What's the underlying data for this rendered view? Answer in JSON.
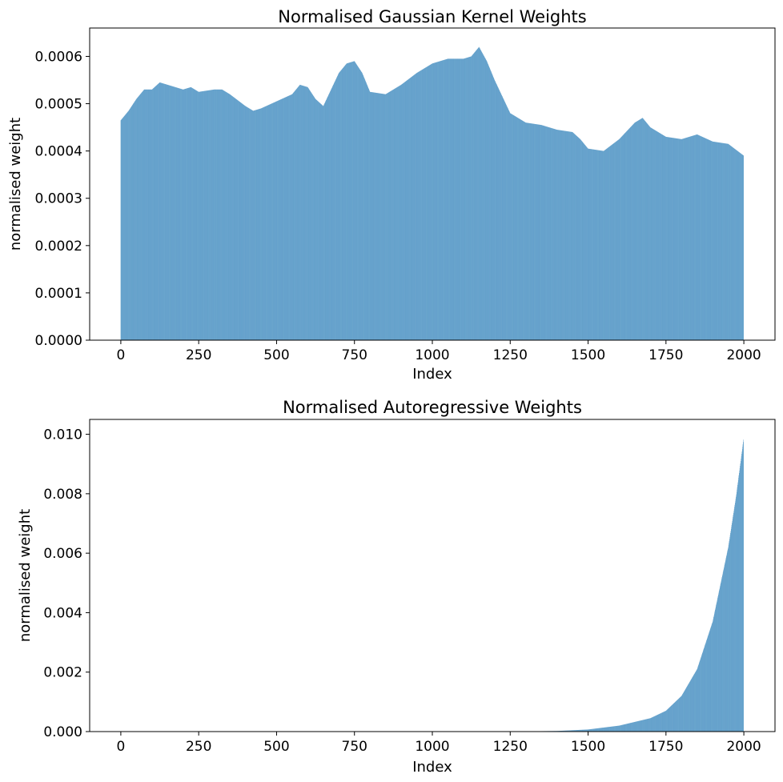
{
  "chart_data": [
    {
      "type": "bar",
      "title": "Normalised Gaussian Kernel Weights",
      "xlabel": "Index",
      "ylabel": "normalised weight",
      "xlim": [
        -100,
        2100
      ],
      "ylim": [
        0,
        0.00066
      ],
      "xticks": [
        0,
        250,
        500,
        750,
        1000,
        1250,
        1500,
        1750,
        2000
      ],
      "xtick_labels": [
        "0",
        "250",
        "500",
        "750",
        "1000",
        "1250",
        "1500",
        "1750",
        "2000"
      ],
      "yticks": [
        0,
        0.0001,
        0.0002,
        0.0003,
        0.0004,
        0.0005,
        0.0006
      ],
      "ytick_labels": [
        "0.0000",
        "0.0001",
        "0.0002",
        "0.0003",
        "0.0004",
        "0.0005",
        "0.0006"
      ],
      "color": "#1f77b4",
      "bar_count": 2000,
      "x_first": 0,
      "x_step": 1,
      "profile": {
        "x": [
          0,
          25,
          50,
          75,
          100,
          125,
          150,
          200,
          225,
          250,
          300,
          325,
          350,
          400,
          425,
          450,
          500,
          550,
          575,
          600,
          625,
          650,
          700,
          725,
          750,
          775,
          800,
          850,
          900,
          950,
          1000,
          1050,
          1100,
          1125,
          1150,
          1175,
          1200,
          1225,
          1250,
          1300,
          1350,
          1400,
          1450,
          1475,
          1500,
          1550,
          1600,
          1650,
          1675,
          1700,
          1750,
          1800,
          1850,
          1900,
          1950,
          2000
        ],
        "values": [
          0.000465,
          0.000485,
          0.00051,
          0.00053,
          0.00053,
          0.000545,
          0.00054,
          0.00053,
          0.000535,
          0.000525,
          0.00053,
          0.00053,
          0.00052,
          0.000495,
          0.000485,
          0.00049,
          0.000505,
          0.00052,
          0.00054,
          0.000535,
          0.00051,
          0.000495,
          0.000565,
          0.000585,
          0.00059,
          0.000565,
          0.000525,
          0.00052,
          0.00054,
          0.000565,
          0.000585,
          0.000595,
          0.000595,
          0.0006,
          0.00062,
          0.00059,
          0.00055,
          0.000515,
          0.00048,
          0.00046,
          0.000455,
          0.000445,
          0.00044,
          0.000425,
          0.000405,
          0.0004,
          0.000425,
          0.00046,
          0.00047,
          0.00045,
          0.00043,
          0.000425,
          0.000435,
          0.00042,
          0.000415,
          0.00039
        ]
      }
    },
    {
      "type": "bar",
      "title": "Normalised Autoregressive Weights",
      "xlabel": "Index",
      "ylabel": "normalised weight",
      "xlim": [
        -100,
        2100
      ],
      "ylim": [
        0,
        0.0105
      ],
      "xticks": [
        0,
        250,
        500,
        750,
        1000,
        1250,
        1500,
        1750,
        2000
      ],
      "xtick_labels": [
        "0",
        "250",
        "500",
        "750",
        "1000",
        "1250",
        "1500",
        "1750",
        "2000"
      ],
      "yticks": [
        0,
        0.002,
        0.004,
        0.006,
        0.008,
        0.01
      ],
      "ytick_labels": [
        "0.000",
        "0.002",
        "0.004",
        "0.006",
        "0.008",
        "0.010"
      ],
      "color": "#1f77b4",
      "bar_count": 2000,
      "x_first": 0,
      "x_step": 1,
      "profile": {
        "x": [
          0,
          1250,
          1400,
          1500,
          1600,
          1700,
          1750,
          1800,
          1850,
          1900,
          1950,
          1975,
          2000
        ],
        "values": [
          0,
          0,
          2e-05,
          7e-05,
          0.0002,
          0.00045,
          0.0007,
          0.0012,
          0.0021,
          0.0037,
          0.0062,
          0.0079,
          0.0099
        ]
      }
    }
  ]
}
